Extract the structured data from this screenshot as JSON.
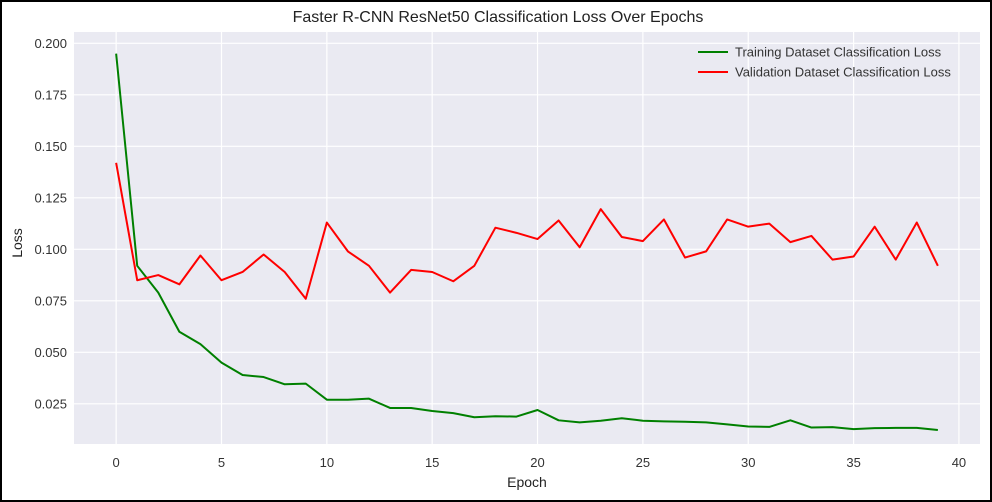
{
  "chart_data": {
    "type": "line",
    "title": "Faster R-CNN ResNet50 Classification Loss Over Epochs",
    "xlabel": "Epoch",
    "ylabel": "Loss",
    "xlim": [
      -2,
      41
    ],
    "ylim": [
      0.0055,
      0.2055
    ],
    "xticks": [
      0,
      5,
      10,
      15,
      20,
      25,
      30,
      35,
      40
    ],
    "yticks": [
      0.025,
      0.05,
      0.075,
      0.1,
      0.125,
      0.15,
      0.175,
      0.2
    ],
    "ytick_labels": [
      "0.025",
      "0.050",
      "0.075",
      "0.100",
      "0.125",
      "0.150",
      "0.175",
      "0.200"
    ],
    "grid": true,
    "legend_position": "top-right",
    "x": [
      0,
      1,
      2,
      3,
      4,
      5,
      6,
      7,
      8,
      9,
      10,
      11,
      12,
      13,
      14,
      15,
      16,
      17,
      18,
      19,
      20,
      21,
      22,
      23,
      24,
      25,
      26,
      27,
      28,
      29,
      30,
      31,
      32,
      33,
      34,
      35,
      36,
      37,
      38,
      39
    ],
    "series": [
      {
        "name": "Training Dataset Classification Loss",
        "color": "#008000",
        "values": [
          0.195,
          0.092,
          0.079,
          0.06,
          0.054,
          0.045,
          0.039,
          0.038,
          0.0345,
          0.0348,
          0.027,
          0.027,
          0.0275,
          0.023,
          0.023,
          0.0215,
          0.0205,
          0.0185,
          0.019,
          0.0188,
          0.022,
          0.017,
          0.016,
          0.0168,
          0.018,
          0.0168,
          0.0165,
          0.0163,
          0.016,
          0.015,
          0.014,
          0.0138,
          0.017,
          0.0135,
          0.0137,
          0.0127,
          0.0132,
          0.0133,
          0.0133,
          0.0123
        ]
      },
      {
        "name": "Validation Dataset Classification Loss",
        "color": "#ff0000",
        "values": [
          0.142,
          0.085,
          0.0875,
          0.083,
          0.097,
          0.085,
          0.089,
          0.0975,
          0.089,
          0.076,
          0.113,
          0.099,
          0.092,
          0.079,
          0.09,
          0.089,
          0.0845,
          0.092,
          0.1105,
          0.108,
          0.105,
          0.114,
          0.101,
          0.1195,
          0.106,
          0.104,
          0.1145,
          0.096,
          0.099,
          0.1145,
          0.111,
          0.1125,
          0.1035,
          0.1065,
          0.095,
          0.0965,
          0.111,
          0.095,
          0.113,
          0.092
        ]
      }
    ]
  }
}
